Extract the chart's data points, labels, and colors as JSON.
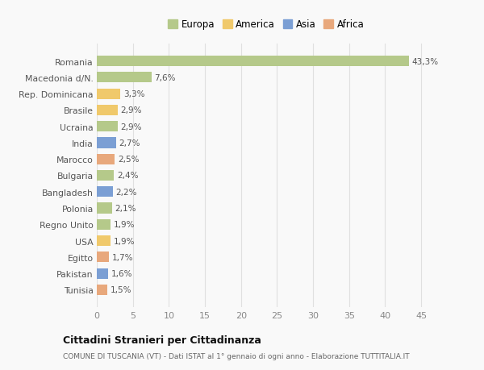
{
  "countries": [
    "Tunisia",
    "Pakistan",
    "Egitto",
    "USA",
    "Regno Unito",
    "Polonia",
    "Bangladesh",
    "Bulgaria",
    "Marocco",
    "India",
    "Ucraina",
    "Brasile",
    "Rep. Dominicana",
    "Macedonia d/N.",
    "Romania"
  ],
  "values": [
    1.5,
    1.6,
    1.7,
    1.9,
    1.9,
    2.1,
    2.2,
    2.4,
    2.5,
    2.7,
    2.9,
    2.9,
    3.3,
    7.6,
    43.3
  ],
  "labels": [
    "1,5%",
    "1,6%",
    "1,7%",
    "1,9%",
    "1,9%",
    "2,1%",
    "2,2%",
    "2,4%",
    "2,5%",
    "2,7%",
    "2,9%",
    "2,9%",
    "3,3%",
    "7,6%",
    "43,3%"
  ],
  "colors": [
    "#e8a87c",
    "#7b9fd4",
    "#e8a87c",
    "#f0c96b",
    "#b5c98a",
    "#b5c98a",
    "#7b9fd4",
    "#b5c98a",
    "#e8a87c",
    "#7b9fd4",
    "#b5c98a",
    "#f0c96b",
    "#f0c96b",
    "#b5c98a",
    "#b5c98a"
  ],
  "legend_labels": [
    "Europa",
    "America",
    "Asia",
    "Africa"
  ],
  "legend_colors": [
    "#b5c98a",
    "#f0c96b",
    "#7b9fd4",
    "#e8a87c"
  ],
  "title": "Cittadini Stranieri per Cittadinanza",
  "subtitle": "COMUNE DI TUSCANIA (VT) - Dati ISTAT al 1° gennaio di ogni anno - Elaborazione TUTTITALIA.IT",
  "xlim": [
    0,
    47
  ],
  "xticks": [
    0,
    5,
    10,
    15,
    20,
    25,
    30,
    35,
    40,
    45
  ],
  "background_color": "#f9f9f9",
  "grid_color": "#e0e0e0",
  "bar_height": 0.65
}
